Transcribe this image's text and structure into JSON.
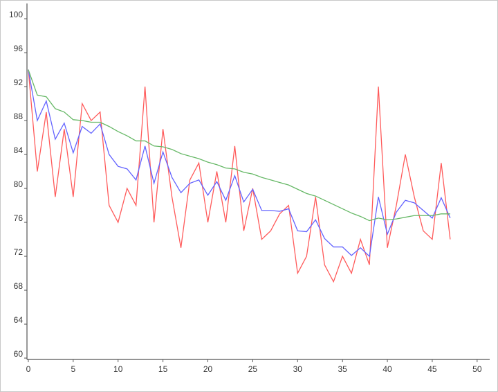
{
  "chart_data": {
    "type": "line",
    "x": [
      0,
      1,
      2,
      3,
      4,
      5,
      6,
      7,
      8,
      9,
      10,
      11,
      12,
      13,
      14,
      15,
      16,
      17,
      18,
      19,
      20,
      21,
      22,
      23,
      24,
      25,
      26,
      27,
      28,
      29,
      30,
      31,
      32,
      33,
      34,
      35,
      36,
      37,
      38,
      39,
      40,
      41,
      42,
      43,
      44,
      45,
      46,
      47
    ],
    "series": [
      {
        "color": "#ff5a5a",
        "values": [
          94,
          82,
          89,
          79,
          87,
          79,
          90,
          88,
          89,
          78,
          76,
          80,
          78,
          92,
          76,
          87,
          79,
          73,
          81,
          83,
          76,
          82,
          76,
          85,
          75,
          80,
          74,
          75,
          77,
          78,
          70,
          72,
          79,
          71,
          69,
          72,
          70,
          74,
          71,
          92,
          73,
          78,
          84,
          79,
          75,
          74,
          83,
          74
        ]
      },
      {
        "color": "#6363ff",
        "values": [
          94,
          88,
          90.3,
          85.8,
          87.7,
          84.2,
          87.3,
          86.5,
          87.6,
          84,
          82.6,
          82.3,
          81,
          85,
          80.6,
          84.3,
          81.3,
          79.5,
          80.6,
          81,
          79.2,
          80.8,
          78.6,
          81.5,
          78.4,
          79.9,
          77.4,
          77.4,
          77.3,
          77.6,
          75,
          74.9,
          76.3,
          74.1,
          73.1,
          73.1,
          72.1,
          73,
          72,
          79,
          74.6,
          77.2,
          78.6,
          78.3,
          77.4,
          76.5,
          78.9,
          76.5
        ]
      },
      {
        "color": "#66b866",
        "values": [
          94,
          91,
          90.8,
          89.4,
          89,
          88.1,
          88,
          87.8,
          87.8,
          87.3,
          86.7,
          86.2,
          85.6,
          85.6,
          85,
          84.9,
          84.6,
          84.1,
          83.8,
          83.5,
          83.1,
          82.8,
          82.4,
          82.3,
          81.9,
          81.7,
          81.3,
          81,
          80.7,
          80.4,
          79.9,
          79.4,
          79.1,
          78.6,
          78.1,
          77.6,
          77.1,
          76.7,
          76.2,
          76.5,
          76.3,
          76.4,
          76.6,
          76.8,
          76.8,
          76.8,
          77,
          77
        ]
      }
    ],
    "xlim": [
      -0.15,
      51.4
    ],
    "ylim": [
      59.84,
      101.8
    ],
    "xticks": [
      0,
      5,
      10,
      15,
      20,
      25,
      30,
      35,
      40,
      45,
      50
    ],
    "yticks": [
      60,
      64,
      68,
      72,
      76,
      80,
      84,
      88,
      92,
      96,
      100
    ]
  }
}
